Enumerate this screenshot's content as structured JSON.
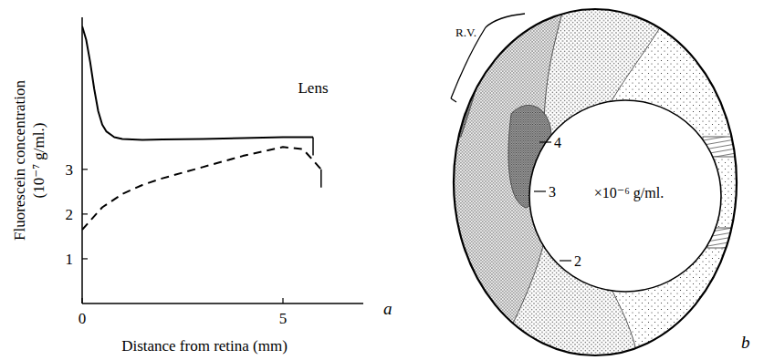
{
  "chart_data": {
    "type": "line",
    "panel": "a",
    "xlabel": "Distance from retina (mm)",
    "ylabel": "Fluorescein concentration (10⁻⁷ g/ml.)",
    "xlim": [
      0,
      7
    ],
    "xticks": [
      0,
      5
    ],
    "ylim": [
      0,
      6.4
    ],
    "yticks": [
      1,
      2,
      3
    ],
    "series": [
      {
        "color": "#000000",
        "line_style": "solid",
        "x": [
          0,
          0.1,
          0.2,
          0.3,
          0.4,
          0.5,
          0.6,
          0.8,
          1,
          1.5,
          2,
          3,
          4,
          5,
          5.75
        ],
        "values": [
          6.2,
          5.9,
          5.4,
          4.8,
          4.3,
          4.0,
          3.85,
          3.72,
          3.68,
          3.66,
          3.67,
          3.68,
          3.7,
          3.72,
          3.72
        ]
      },
      {
        "color": "#000000",
        "line_style": "dashed",
        "x": [
          0,
          0.5,
          1,
          1.5,
          2,
          3,
          4,
          5,
          5.5,
          5.95
        ],
        "values": [
          1.65,
          2.15,
          2.45,
          2.65,
          2.8,
          3.05,
          3.3,
          3.5,
          3.45,
          3.0
        ]
      }
    ],
    "annotations": [
      {
        "text": "Lens",
        "x": 5.75,
        "y": 4.7
      }
    ]
  },
  "diagram": {
    "panel": "b",
    "unit": "×10⁻⁶ g/ml.",
    "region": "R.V.",
    "contour_labels": [
      4,
      3,
      2
    ]
  }
}
